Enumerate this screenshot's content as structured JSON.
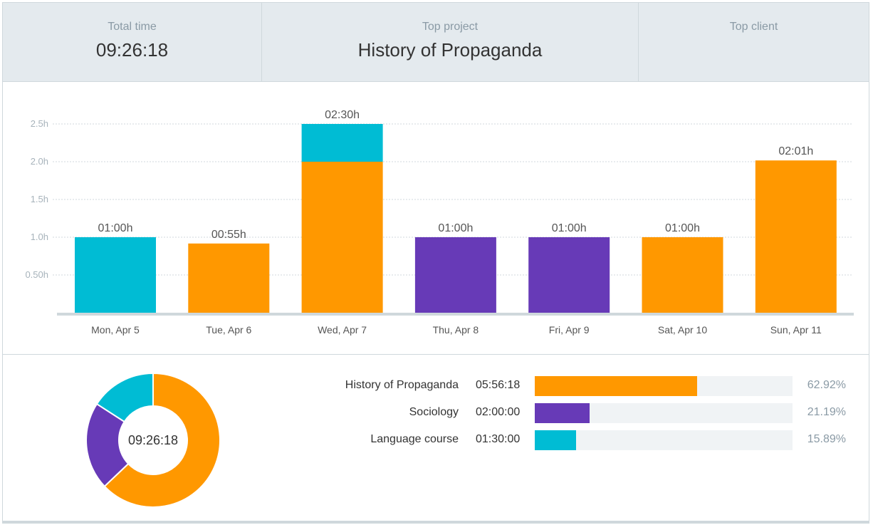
{
  "summary": {
    "total_time_label": "Total time",
    "total_time_value": "09:26:18",
    "top_project_label": "Top project",
    "top_project_value": "History of Propaganda",
    "top_client_label": "Top client",
    "top_client_value": ""
  },
  "colors": {
    "history": "#ff9800",
    "sociology": "#673ab7",
    "language": "#00bcd4",
    "track": "#f0f3f5"
  },
  "chart_data": [
    {
      "type": "bar",
      "stacked": true,
      "categories": [
        "Mon, Apr 5",
        "Tue, Apr 6",
        "Wed, Apr 7",
        "Thu, Apr 8",
        "Fri, Apr 9",
        "Sat, Apr 10",
        "Sun, Apr 11"
      ],
      "series": [
        {
          "name": "History of Propaganda",
          "color": "#ff9800",
          "values": [
            0,
            0.9167,
            2.0,
            0,
            0,
            1.0,
            2.0167
          ]
        },
        {
          "name": "Sociology",
          "color": "#673ab7",
          "values": [
            0,
            0,
            0,
            1.0,
            1.0,
            0,
            0
          ]
        },
        {
          "name": "Language course",
          "color": "#00bcd4",
          "values": [
            1.0,
            0,
            0.5,
            0,
            0,
            0,
            0
          ]
        }
      ],
      "data_labels": [
        "01:00h",
        "00:55h",
        "02:30h",
        "01:00h",
        "01:00h",
        "01:00h",
        "02:01h"
      ],
      "yticks": [
        0.5,
        1.0,
        1.5,
        2.0,
        2.5
      ],
      "ytick_labels": [
        "0.50h",
        "1.0h",
        "1.5h",
        "2.0h",
        "2.5h"
      ],
      "ylim": [
        0,
        2.5
      ],
      "grid": true,
      "title": "",
      "xlabel": "",
      "ylabel": ""
    },
    {
      "type": "pie",
      "donut": true,
      "center_label": "09:26:18",
      "labels": [
        "History of Propaganda",
        "Sociology",
        "Language course"
      ],
      "values": [
        62.92,
        21.19,
        15.89
      ],
      "times": [
        "05:56:18",
        "02:00:00",
        "01:30:00"
      ],
      "percent_labels": [
        "62.92%",
        "21.19%",
        "15.89%"
      ],
      "colors": [
        "#ff9800",
        "#673ab7",
        "#00bcd4"
      ]
    }
  ]
}
